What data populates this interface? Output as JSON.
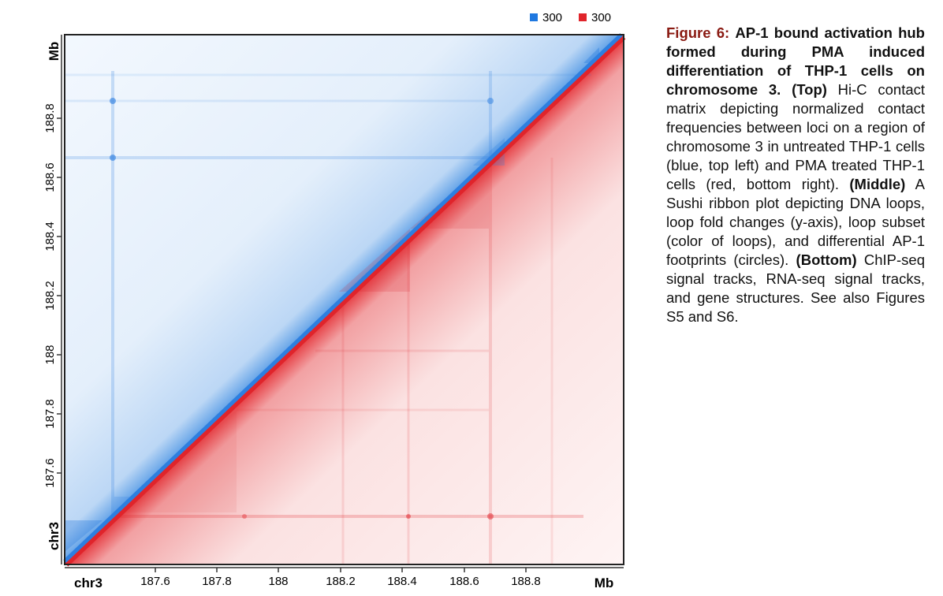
{
  "figure": {
    "legend": [
      {
        "value": "300",
        "color": "#1f78e0"
      },
      {
        "value": "300",
        "color": "#e0242b"
      }
    ],
    "y_axis": {
      "unit": "Mb",
      "chrom": "chr3",
      "ticks": [
        "187.6",
        "187.8",
        "188",
        "188.2",
        "188.4",
        "188.6",
        "188.8"
      ]
    },
    "x_axis": {
      "unit": "Mb",
      "chrom": "chr3",
      "ticks": [
        "187.6",
        "187.8",
        "188",
        "188.2",
        "188.4",
        "188.6",
        "188.8"
      ]
    },
    "colors": {
      "upper": "#1f78e0",
      "lower": "#e0242b"
    }
  },
  "caption": {
    "label": "Figure 6:",
    "title": "AP-1 bound activation hub formed during PMA induced differentiation of THP-1 cells on chromosome 3.",
    "top_label": "(Top)",
    "top_text": "Hi-C contact matrix depicting normalized contact frequencies between loci on a region of chromosome 3 in untreated THP-1 cells (blue, top left) and PMA treated THP-1 cells (red, bottom right).",
    "middle_label": "(Middle)",
    "middle_text": "A Sushi ribbon plot depicting DNA loops, loop fold changes (y-axis), loop subset (color of loops), and differential AP-1 footprints (circles).",
    "bottom_label": "(Bottom)",
    "bottom_text": "ChIP-seq signal tracks, RNA-seq signal tracks, and gene structures. See also Figures S5 and S6."
  }
}
